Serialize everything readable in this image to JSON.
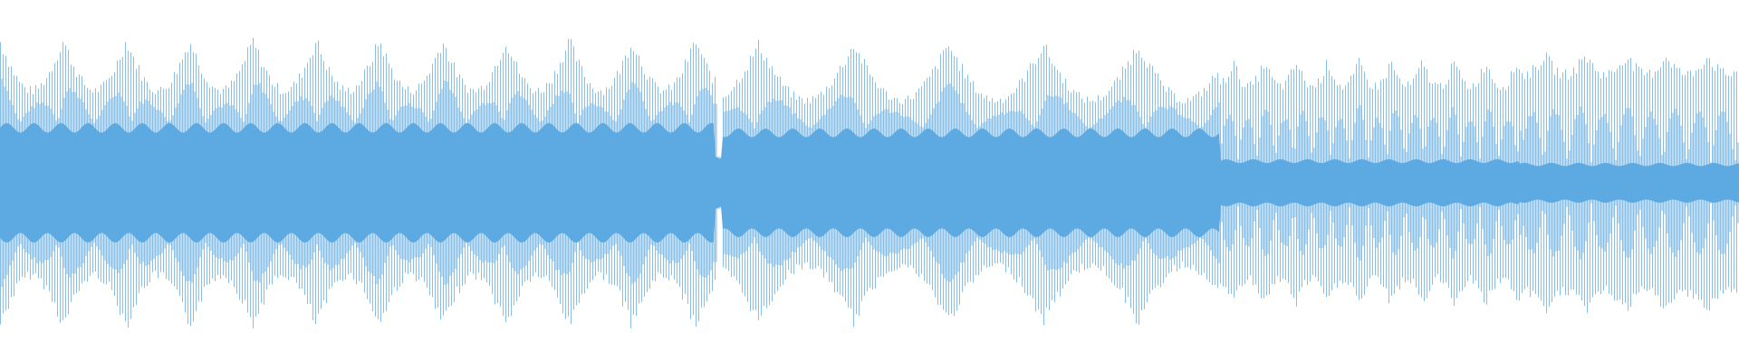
{
  "waveform": {
    "color": "#5DA9E1"
  }
}
